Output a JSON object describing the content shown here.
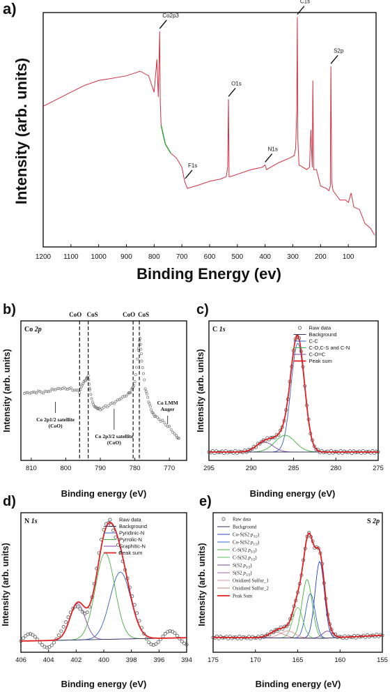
{
  "chart_data": [
    {
      "panel": "a)",
      "type": "line",
      "ylabel": "Intensity (arb. units)",
      "xlabel": "Binding Energy (ev)",
      "xlim": [
        1200,
        0
      ],
      "x_ticks": [
        1200,
        1100,
        1000,
        900,
        800,
        700,
        600,
        500,
        400,
        300,
        200,
        100
      ],
      "ylim": [
        0,
        100
      ],
      "series": [
        {
          "color": "#d03040",
          "x": [
            1200,
            1150,
            1100,
            1050,
            1000,
            950,
            900,
            850,
            820,
            800,
            790,
            785,
            780,
            778,
            775,
            770,
            760,
            740,
            720,
            700,
            690,
            680,
            650,
            600,
            560,
            540,
            535,
            532,
            530,
            525,
            500,
            450,
            410,
            400,
            395,
            350,
            310,
            295,
            290,
            286,
            284,
            282,
            278,
            250,
            240,
            235,
            230,
            228,
            225,
            215,
            200,
            180,
            170,
            165,
            163,
            160,
            155,
            130,
            110,
            100,
            90,
            80,
            60,
            40,
            20,
            5
          ],
          "y": [
            60,
            63,
            66,
            69,
            71,
            72,
            73,
            75,
            73,
            66,
            80,
            64,
            92,
            62,
            52,
            49,
            44,
            40,
            38,
            34,
            28,
            25,
            26,
            28,
            29,
            30,
            34,
            63,
            30,
            30,
            31,
            33,
            34,
            35,
            33,
            36,
            38,
            39,
            42,
            58,
            98,
            46,
            35,
            33,
            34,
            50,
            34,
            71,
            33,
            33,
            26,
            25,
            24,
            26,
            77,
            28,
            24,
            20,
            20,
            19,
            23,
            17,
            16,
            10,
            8,
            5
          ]
        },
        {
          "color": "#2ca02c",
          "x": [
            775,
            760,
            740
          ],
          "y": [
            52,
            44,
            40
          ]
        }
      ],
      "annotations": [
        {
          "label": "C1s",
          "x": 284,
          "y": 98
        },
        {
          "label": "S2p",
          "x": 163,
          "y": 77
        },
        {
          "label": "Co2p3",
          "x": 780,
          "y": 92
        },
        {
          "label": "O1s",
          "x": 532,
          "y": 63
        },
        {
          "label": "N1s",
          "x": 400,
          "y": 35
        },
        {
          "label": "F1s",
          "x": 688,
          "y": 28
        }
      ]
    },
    {
      "panel": "b)",
      "type": "scatter",
      "title": "Co 2p",
      "ylabel": "Intensity (arb. units)",
      "xlabel": "Binding energy (eV)",
      "xlim": [
        813,
        765
      ],
      "ylim": [
        0,
        100
      ],
      "x_ticks": [
        810,
        800,
        790,
        780,
        770
      ],
      "markers": [
        {
          "label": "CoO",
          "x": 796
        },
        {
          "label": "CoS",
          "x": 793.5
        },
        {
          "label": "CoO",
          "x": 780.5
        },
        {
          "label": "CoS",
          "x": 778.7
        }
      ],
      "annotations": [
        {
          "label": "Co 2p1/2 satellite (CoO)",
          "x": 803,
          "y": 45
        },
        {
          "label": "Co 2p3/2 satellite (CoO)",
          "x": 786,
          "y": 38
        },
        {
          "label": "Co LMM Auger",
          "x": 770,
          "y": 22
        }
      ],
      "series": [
        {
          "x": [
            812,
            810,
            808,
            806,
            804,
            802,
            800,
            798,
            796,
            795,
            794,
            793.5,
            793,
            792,
            791,
            790,
            788,
            786,
            784,
            782,
            781,
            780,
            779,
            778.5,
            778,
            777,
            776,
            775,
            774,
            772,
            770,
            768,
            767
          ],
          "y": [
            48,
            48,
            49,
            49,
            51,
            52,
            52,
            51,
            49,
            55,
            58,
            60,
            50,
            40,
            38,
            37,
            39,
            41,
            44,
            47,
            50,
            56,
            79,
            88,
            72,
            52,
            42,
            34,
            31,
            28,
            24,
            18,
            15
          ]
        }
      ]
    },
    {
      "panel": "c)",
      "type": "line",
      "title": "C 1s",
      "ylabel": "Intensity (arb. units)",
      "xlabel": "Binding energy (eV)",
      "xlim": [
        295,
        275
      ],
      "x_ticks": [
        295,
        290,
        285,
        280,
        275
      ],
      "ylim": [
        0,
        100
      ],
      "legend": [
        "Raw data",
        "Background",
        "C-C",
        "C-O,C-S and C-N",
        "C-O=C",
        "Peak sum"
      ],
      "legend_colors": [
        "#555555",
        "#333366",
        "#3060c0",
        "#40b040",
        "#8040a0",
        "#e02020"
      ],
      "series": [
        {
          "name": "C-C",
          "center": 284.5,
          "height": 78,
          "width": 0.8
        },
        {
          "name": "C-O,C-S and C-N",
          "center": 286.0,
          "height": 12,
          "width": 1.2
        },
        {
          "name": "C-O=C",
          "center": 288.4,
          "height": 7,
          "width": 1.0
        }
      ],
      "baseline": 6
    },
    {
      "panel": "d)",
      "type": "line",
      "title": "N 1s",
      "ylabel": "Intensity (arb. units)",
      "xlabel": "Binding energy (eV)",
      "xlim": [
        406,
        394
      ],
      "x_ticks": [
        406,
        404,
        402,
        400,
        398,
        396,
        394
      ],
      "ylim": [
        0,
        100
      ],
      "legend": [
        "Raw data",
        "Background",
        "Pyridinic-N",
        "Pyrrolic-N",
        "Graphitic-N",
        "Peak sum"
      ],
      "legend_colors": [
        "#555555",
        "#333366",
        "#3060c0",
        "#40b040",
        "#8040a0",
        "#e02020"
      ],
      "series": [
        {
          "name": "Pyridinic-N",
          "center": 398.8,
          "height": 48,
          "width": 0.75
        },
        {
          "name": "Pyrrolic-N",
          "center": 399.9,
          "height": 62,
          "width": 0.7
        },
        {
          "name": "Graphitic-N",
          "center": 401.9,
          "height": 26,
          "width": 0.55
        }
      ],
      "baseline": 8
    },
    {
      "panel": "e)",
      "type": "line",
      "title": "S 2p",
      "ylabel": "Intensity (arb. units)",
      "xlabel": "Binding energy (eV)",
      "xlim": [
        175,
        155
      ],
      "x_ticks": [
        175,
        170,
        165,
        160,
        155
      ],
      "ylim": [
        0,
        100
      ],
      "legend": [
        "Raw data",
        "Background",
        "Co-S(S2 p3/2)",
        "Co-S(S2 p1/2)",
        "C-S(S2 p3/2)",
        "C-S(S2 p1/2)",
        "Sx(S2 p3/2)",
        "Sx(S2 p1/2)",
        "Oxidized Sulfur_1",
        "Oxidized Sulfur_2",
        "Peak Sum"
      ],
      "legend_colors": [
        "#555555",
        "#333366",
        "#2040c0",
        "#3060d0",
        "#40b040",
        "#60c060",
        "#8040a0",
        "#a060b0",
        "#e09090",
        "#c08080",
        "#e02020"
      ],
      "series": [
        {
          "name": "Co-S(S2 p3/2)",
          "center": 162.4,
          "height": 55,
          "width": 0.55
        },
        {
          "name": "Co-S(S2 p1/2)",
          "center": 163.5,
          "height": 32,
          "width": 0.55
        },
        {
          "name": "C-S(S2 p3/2)",
          "center": 163.9,
          "height": 42,
          "width": 0.6
        },
        {
          "name": "C-S(S2 p1/2)",
          "center": 165.0,
          "height": 22,
          "width": 0.6
        },
        {
          "name": "Sx(S2 p3/2)",
          "center": 161.5,
          "height": 5,
          "width": 0.6
        },
        {
          "name": "Oxidized Sulfur_1",
          "center": 166.2,
          "height": 5,
          "width": 0.9
        },
        {
          "name": "Oxidized Sulfur_2",
          "center": 167.5,
          "height": 4,
          "width": 0.9
        }
      ],
      "baseline": 10
    }
  ]
}
